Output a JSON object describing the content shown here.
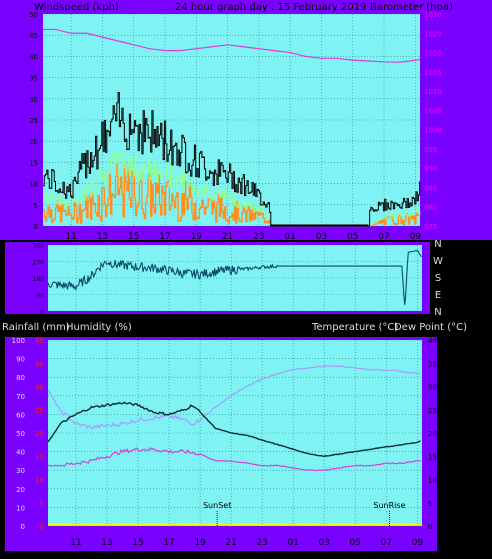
{
  "header": {
    "left": "Windspeed (kph)",
    "center": "24 hour graph day : 15 February 2019",
    "right": "Barometer (hpa)"
  },
  "headers2": {
    "rain": "Rainfall (mm)",
    "humidity": "Humidity (%)",
    "temp": "Temperature (°C)",
    "dew": "Dew Point (°C)"
  },
  "x_labels": [
    "11",
    "13",
    "15",
    "17",
    "19",
    "21",
    "23",
    "01",
    "03",
    "05",
    "07",
    "09"
  ],
  "sun_labels": {
    "sunset": "SunSet",
    "sunrise": "SunRise"
  },
  "colors": {
    "purple_bg": "#7a00ff",
    "plot_bg": "#7ff3f3",
    "grid": "#2a8a8a",
    "barometer": "#d93ed9",
    "wind_gust": "#000000",
    "wind_avg": "#90ff90",
    "wind_dir_bars": "#ff9020",
    "dir_line": "#0c4a6a",
    "temp": "#0b2b3a",
    "humidity": "#a89aff",
    "dew": "#d93ed9",
    "rain": "#ffff00"
  },
  "chart_data": [
    {
      "type": "line",
      "title": "24 hour graph day : 15 February 2019",
      "xlabel": "",
      "ylabel": "Windspeed (kph)",
      "ylabel_right": "Barometer (hpa)",
      "ylim": [
        0,
        50
      ],
      "ylim_right": [
        975,
        1030
      ],
      "yticks": [
        0,
        5,
        10,
        15,
        20,
        25,
        30,
        35,
        40,
        45,
        50
      ],
      "yticks_right": [
        975,
        980,
        985,
        990,
        995,
        1000,
        1005,
        1010,
        1015,
        1020,
        1025,
        1030
      ],
      "x_hours": [
        10,
        11,
        13,
        15,
        17,
        19,
        21,
        23,
        24,
        25,
        27,
        29,
        31,
        33
      ],
      "series": [
        {
          "name": "Barometer (hpa)",
          "axis": "right",
          "x": [
            9.2,
            10,
            11,
            12,
            13,
            14,
            15,
            16,
            17,
            18,
            19,
            20,
            21,
            22,
            23,
            24,
            25,
            26,
            27,
            28,
            29,
            30,
            31,
            32,
            33,
            33.3
          ],
          "values": [
            1026,
            1026,
            1025,
            1025,
            1024,
            1023,
            1022,
            1021,
            1020.5,
            1020.5,
            1021,
            1021.5,
            1022,
            1021.5,
            1021,
            1020.5,
            1020,
            1019,
            1018.5,
            1018.5,
            1018,
            1017.8,
            1017.6,
            1017.5,
            1018,
            1018.2
          ]
        },
        {
          "name": "Wind gust",
          "axis": "left",
          "x": [
            9.2,
            10,
            11,
            12,
            13,
            14,
            15,
            16,
            17,
            18,
            19,
            20,
            21,
            22,
            23,
            23.6,
            24,
            25,
            26,
            27,
            28,
            29,
            30,
            31,
            32,
            33,
            33.3
          ],
          "values": [
            12,
            10,
            8,
            16,
            20,
            25,
            24,
            22,
            20,
            18,
            15,
            13,
            12,
            10,
            7,
            5,
            0,
            0,
            0,
            0,
            0,
            0,
            4,
            5,
            5,
            6,
            9
          ]
        },
        {
          "name": "Wind average",
          "axis": "left",
          "x": [
            9.2,
            10,
            11,
            12,
            13,
            14,
            15,
            16,
            17,
            18,
            19,
            20,
            21,
            22,
            23,
            23.6,
            24,
            30,
            31,
            32,
            33,
            33.3
          ],
          "values": [
            7,
            6,
            5,
            8,
            12,
            15,
            14,
            13,
            12,
            11,
            9,
            8,
            7,
            5,
            4,
            3,
            0,
            0,
            2,
            3,
            3,
            4
          ]
        }
      ]
    },
    {
      "type": "line",
      "title": "",
      "ylabel": "",
      "ylabel_right": "",
      "ylim": [
        0,
        360
      ],
      "yticks": [
        0,
        90,
        180,
        270,
        360
      ],
      "right_labels": [
        "N",
        "W",
        "S",
        "E",
        "N"
      ],
      "series": [
        {
          "name": "",
          "x": [
            9.2,
            10,
            11,
            12,
            12.5,
            13,
            13.5,
            14,
            15,
            16,
            17,
            18,
            19,
            20,
            21,
            22,
            23,
            24,
            25,
            26,
            27,
            28,
            29,
            30,
            31,
            32,
            32.2,
            32.4,
            33,
            33.3
          ],
          "values": [
            150,
            140,
            135,
            190,
            240,
            270,
            255,
            250,
            240,
            235,
            220,
            205,
            200,
            215,
            225,
            230,
            240,
            245,
            245,
            245,
            245,
            245,
            245,
            245,
            245,
            245,
            10,
            320,
            330,
            290
          ]
        }
      ]
    },
    {
      "type": "line",
      "title": "",
      "xlabel": "",
      "ylabel": "Humidity (%)",
      "ylabel_right": "Temperature (°C)",
      "ylim": [
        0,
        100
      ],
      "ylim_right": [
        0,
        40
      ],
      "yticks": [
        0,
        10,
        20,
        30,
        40,
        50,
        60,
        70,
        80,
        90,
        100
      ],
      "yticks_right": [
        0,
        5,
        10,
        15,
        20,
        25,
        30,
        35,
        40
      ],
      "rain_ticks": [
        0,
        5,
        10,
        15,
        20,
        25,
        30,
        35,
        40
      ],
      "series": [
        {
          "name": "Humidity (%)",
          "axis": "left",
          "x": [
            9.2,
            10,
            11,
            12,
            13,
            14,
            15,
            16,
            17,
            18,
            18.5,
            19,
            20,
            21,
            22,
            23,
            24,
            25,
            26,
            27,
            28,
            29,
            30,
            31,
            32,
            33,
            33.3
          ],
          "values": [
            73,
            62,
            55,
            53,
            54,
            55,
            57,
            58,
            59,
            57,
            55,
            57,
            64,
            70,
            75,
            79,
            82,
            84,
            85,
            86,
            86,
            85,
            84,
            84,
            83,
            82,
            82
          ]
        },
        {
          "name": "Temperature (°C)",
          "axis": "right",
          "x": [
            9.2,
            10,
            11,
            12,
            13,
            14,
            15,
            16,
            17,
            18,
            18.5,
            19,
            20,
            21,
            22,
            23,
            24,
            25,
            26,
            27,
            28,
            29,
            30,
            31,
            32,
            33,
            33.3
          ],
          "values": [
            18,
            22,
            24,
            25.5,
            26,
            26.5,
            26,
            24.5,
            24,
            25,
            26,
            24.5,
            21,
            20,
            19.5,
            18.5,
            17.5,
            16.5,
            15.5,
            15,
            15.5,
            16,
            16.5,
            17,
            17.5,
            18,
            18.5
          ]
        },
        {
          "name": "Dew Point (°C)",
          "axis": "right",
          "x": [
            9.2,
            10,
            11,
            12,
            13,
            14,
            15,
            16,
            17,
            18,
            19,
            20,
            21,
            22,
            23,
            24,
            25,
            26,
            27,
            28,
            29,
            30,
            31,
            32,
            33,
            33.3
          ],
          "values": [
            13,
            13,
            13.5,
            14,
            15,
            16,
            16.5,
            16.5,
            16,
            16,
            15.5,
            14,
            14,
            13.5,
            13,
            13,
            12.5,
            12,
            12,
            12.5,
            13,
            13,
            13.5,
            13.5,
            14,
            14
          ]
        },
        {
          "name": "Rainfall (mm)",
          "axis": "rain",
          "x": [
            9.2,
            33.3
          ],
          "values": [
            0,
            0
          ]
        }
      ]
    }
  ]
}
